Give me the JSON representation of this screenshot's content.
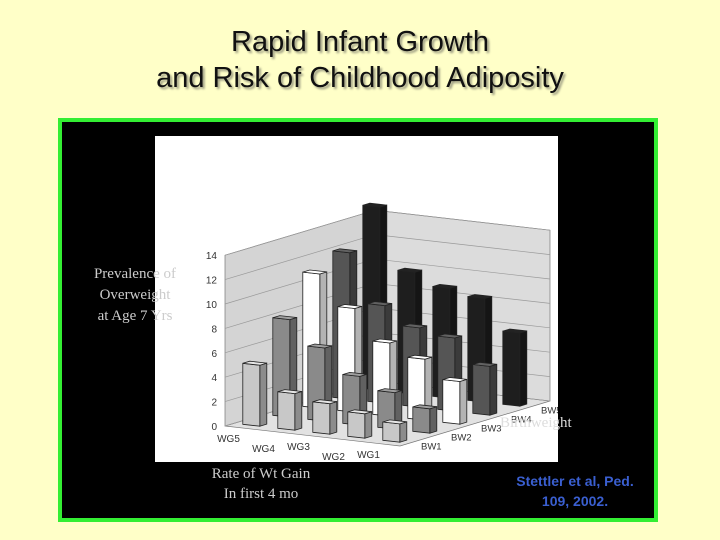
{
  "slide": {
    "title_line1": "Rapid Infant Growth",
    "title_line2": "and Risk of Childhood Adiposity",
    "citation_line1": "Stettler et al, Ped.",
    "citation_line2": "109, 2002.",
    "colors": {
      "background": "#ffffc8",
      "frame_border": "#33ee33",
      "frame_fill": "#000000",
      "citation": "#3a5fd0"
    }
  },
  "chart_data": {
    "type": "bar",
    "subtype": "3d-bar",
    "ylabel_lines": [
      "Prevalence of",
      "Overweight",
      "at Age 7 Yrs"
    ],
    "xlabel_lines": [
      "Rate of Wt Gain",
      "In first 4 mo"
    ],
    "zlabel": "Birthweight",
    "y_ticks": [
      "0",
      "2",
      "4",
      "6",
      "8",
      "10",
      "12",
      "14"
    ],
    "ylim": [
      0,
      14
    ],
    "categories": [
      "WG5",
      "WG4",
      "WG3",
      "WG2",
      "WG1"
    ],
    "series": [
      {
        "name": "BW1",
        "values": [
          5,
          3,
          2.5,
          2,
          1.5
        ],
        "color": "#c8c8c8"
      },
      {
        "name": "BW2",
        "values": [
          8,
          6,
          4,
          3,
          2
        ],
        "color": "#8a8a8a"
      },
      {
        "name": "BW3",
        "values": [
          11,
          8.5,
          6,
          5,
          3.5
        ],
        "color": "#ffffff"
      },
      {
        "name": "BW4",
        "values": [
          12,
          8,
          6.5,
          6,
          4
        ],
        "color": "#555555"
      },
      {
        "name": "BW5",
        "values": [
          15,
          10,
          9,
          8.5,
          6
        ],
        "color": "#1e1e1e"
      }
    ],
    "grid": true,
    "legend": "none"
  }
}
